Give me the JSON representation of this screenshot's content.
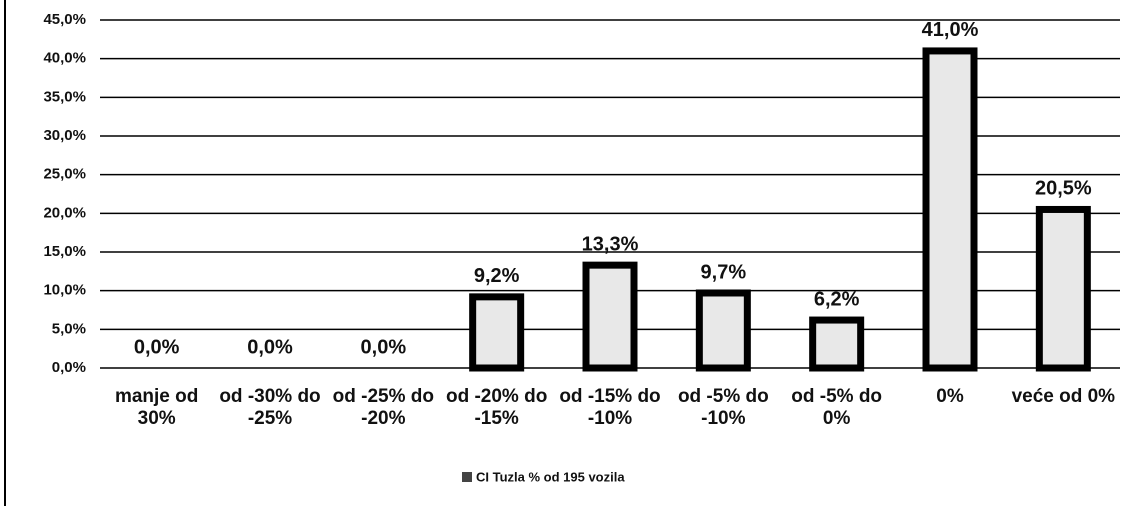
{
  "chart_data": {
    "type": "bar",
    "categories": [
      "manje od 30%",
      "od -30% do -25%",
      "od -25% do -20%",
      "od -20% do -15%",
      "od -15% do -10%",
      "od -5% do -10%",
      "od -5% do 0%",
      "0%",
      "veće od 0%"
    ],
    "series": [
      {
        "name": "CI Tuzla % od 195 vozila",
        "color": "#e8e8e8",
        "values": [
          0,
          0,
          0,
          9.2,
          13.3,
          9.7,
          6.2,
          41.0,
          20.5
        ],
        "value_labels": [
          "0,0%",
          "0,0%",
          "0,0%",
          "9,2%",
          "13,3%",
          "9,7%",
          "6,2%",
          "41,0%",
          "20,5%"
        ]
      }
    ],
    "ylim": [
      0,
      45
    ],
    "yticks": [
      {
        "value": 0,
        "label": "0,0%"
      },
      {
        "value": 5,
        "label": "5,0%"
      },
      {
        "value": 10,
        "label": "10,0%"
      },
      {
        "value": 15,
        "label": "15,0%"
      },
      {
        "value": 20,
        "label": "20,0%"
      },
      {
        "value": 25,
        "label": "25,0%"
      },
      {
        "value": 30,
        "label": "30,0%"
      },
      {
        "value": 35,
        "label": "35,0%"
      },
      {
        "value": 40,
        "label": "40,0%"
      },
      {
        "value": 45,
        "label": "45,0%"
      }
    ],
    "grid": true,
    "legend": "bottom"
  }
}
